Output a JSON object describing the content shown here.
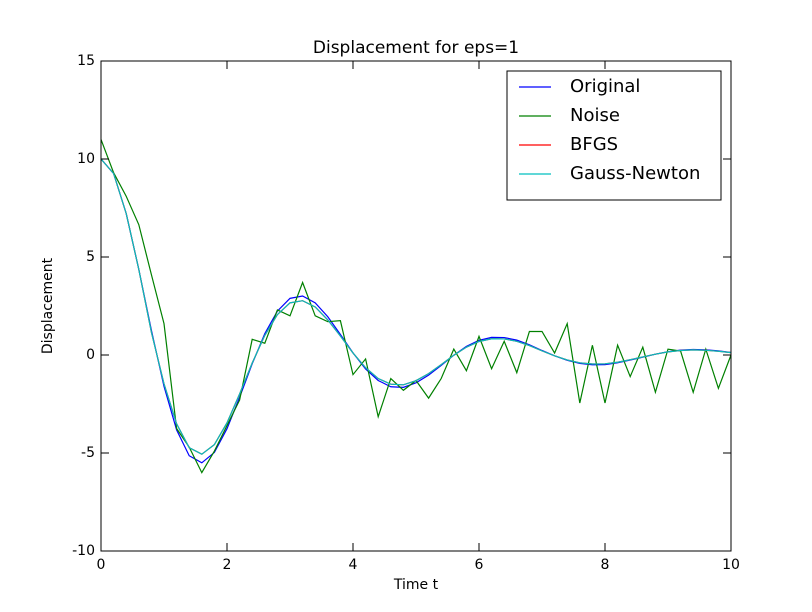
{
  "chart_data": {
    "type": "line",
    "title": "Displacement for eps=1",
    "xlabel": "Time t",
    "ylabel": "Displacement",
    "x": [
      0,
      0.2,
      0.4,
      0.6,
      0.8,
      1.0,
      1.2,
      1.4,
      1.6,
      1.8,
      2.0,
      2.2,
      2.4,
      2.6,
      2.8,
      3.0,
      3.2,
      3.4,
      3.6,
      3.8,
      4.0,
      4.2,
      4.4,
      4.6,
      4.8,
      5.0,
      5.2,
      5.4,
      5.6,
      5.8,
      6.0,
      6.2,
      6.4,
      6.6,
      6.8,
      7.0,
      7.2,
      7.4,
      7.6,
      7.8,
      8.0,
      8.2,
      8.4,
      8.6,
      8.8,
      9.0,
      9.2,
      9.4,
      9.6,
      9.8,
      10.0
    ],
    "series": [
      {
        "name": "Original",
        "color": "#0000ff",
        "values": [
          10.0,
          9.26,
          7.22,
          4.37,
          1.26,
          -1.6,
          -3.82,
          -5.14,
          -5.5,
          -4.97,
          -3.76,
          -2.16,
          -0.45,
          1.09,
          2.24,
          2.89,
          3.01,
          2.66,
          1.95,
          1.05,
          0.11,
          -0.71,
          -1.3,
          -1.62,
          -1.65,
          -1.42,
          -1.03,
          -0.53,
          -0.01,
          0.44,
          0.75,
          0.9,
          0.89,
          0.76,
          0.52,
          0.23,
          -0.04,
          -0.27,
          -0.43,
          -0.5,
          -0.49,
          -0.4,
          -0.26,
          -0.11,
          0.04,
          0.17,
          0.25,
          0.28,
          0.26,
          0.21,
          0.13
        ]
      },
      {
        "name": "Noise",
        "color": "#008000",
        "values": [
          11.0,
          9.3,
          8.1,
          6.65,
          4.1,
          1.6,
          -3.75,
          -4.7,
          -6.0,
          -4.9,
          -3.6,
          -2.3,
          0.8,
          0.6,
          2.3,
          2.0,
          3.7,
          2.0,
          1.7,
          1.75,
          -1.0,
          -0.2,
          -3.15,
          -1.2,
          -1.8,
          -1.3,
          -2.2,
          -1.2,
          0.3,
          -0.8,
          0.95,
          -0.7,
          0.7,
          -0.9,
          1.2,
          1.2,
          0.1,
          1.6,
          -2.45,
          0.5,
          -2.45,
          0.5,
          -1.1,
          0.4,
          -1.9,
          0.3,
          0.2,
          -1.9,
          0.3,
          -1.7,
          0.0
        ]
      },
      {
        "name": "BFGS",
        "color": "#ff0000",
        "values": [
          10.0,
          9.26,
          7.22,
          4.37,
          1.16,
          -1.47,
          -3.51,
          -4.73,
          -5.06,
          -4.57,
          -3.46,
          -1.99,
          -0.41,
          1.0,
          2.06,
          2.66,
          2.77,
          2.45,
          1.79,
          0.97,
          0.1,
          -0.65,
          -1.2,
          -1.49,
          -1.52,
          -1.31,
          -0.95,
          -0.49,
          -0.01,
          0.4,
          0.69,
          0.83,
          0.82,
          0.7,
          0.48,
          0.21,
          -0.04,
          -0.25,
          -0.4,
          -0.46,
          -0.45,
          -0.37,
          -0.24,
          -0.1,
          0.04,
          0.16,
          0.23,
          0.26,
          0.24,
          0.19,
          0.12
        ]
      },
      {
        "name": "Gauss-Newton",
        "color": "#00bfbf",
        "values": [
          10.0,
          9.26,
          7.22,
          4.37,
          1.16,
          -1.47,
          -3.51,
          -4.73,
          -5.06,
          -4.57,
          -3.46,
          -1.99,
          -0.41,
          1.0,
          2.06,
          2.66,
          2.77,
          2.45,
          1.79,
          0.97,
          0.1,
          -0.65,
          -1.2,
          -1.49,
          -1.52,
          -1.31,
          -0.95,
          -0.49,
          -0.01,
          0.4,
          0.69,
          0.83,
          0.82,
          0.7,
          0.48,
          0.21,
          -0.04,
          -0.25,
          -0.4,
          -0.46,
          -0.45,
          -0.37,
          -0.24,
          -0.1,
          0.04,
          0.16,
          0.23,
          0.26,
          0.24,
          0.19,
          0.12
        ]
      }
    ],
    "xlim": [
      0,
      10
    ],
    "xticks": [
      0,
      2,
      4,
      6,
      8,
      10
    ],
    "ylim": [
      -10,
      15
    ],
    "yticks": [
      -10,
      -5,
      0,
      5,
      10,
      15
    ],
    "grid": false,
    "legend": "upper right"
  }
}
